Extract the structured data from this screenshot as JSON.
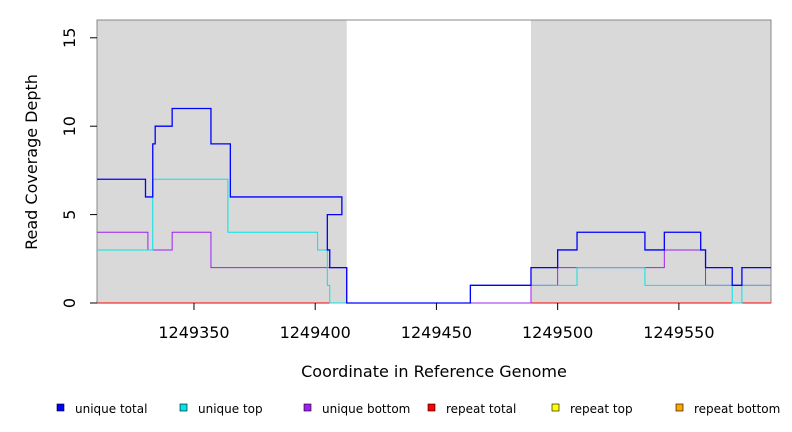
{
  "chart_data": {
    "type": "line",
    "title": "",
    "xlabel": "Coordinate in Reference Genome",
    "ylabel": "Read Coverage Depth",
    "xlim": [
      1249310,
      1249588
    ],
    "ylim": [
      0,
      16
    ],
    "x_ticks": [
      1249350,
      1249400,
      1249450,
      1249500,
      1249550
    ],
    "x_tick_labels": [
      "1249350",
      "1249400",
      "1249450",
      "1249500",
      "1249550"
    ],
    "y_ticks": [
      0,
      5,
      10,
      15
    ],
    "y_tick_labels": [
      "0",
      "5",
      "10",
      "15"
    ],
    "shaded_regions": [
      [
        1249310,
        1249413
      ],
      [
        1249489,
        1249588
      ]
    ],
    "shade_color": "#d9d9d9",
    "legend_position": "bottom",
    "series": [
      {
        "name": "unique total",
        "color": "#0000ff",
        "steps": [
          [
            1249310,
            7
          ],
          [
            1249330,
            6
          ],
          [
            1249333,
            9
          ],
          [
            1249334,
            10
          ],
          [
            1249341,
            11
          ],
          [
            1249357,
            9
          ],
          [
            1249365,
            6
          ],
          [
            1249411,
            5
          ],
          [
            1249405,
            3
          ],
          [
            1249406,
            2
          ],
          [
            1249413,
            0
          ],
          [
            1249464,
            1
          ],
          [
            1249489,
            2
          ],
          [
            1249500,
            3
          ],
          [
            1249508,
            4
          ],
          [
            1249536,
            3
          ],
          [
            1249544,
            4
          ],
          [
            1249559,
            3
          ],
          [
            1249561,
            2
          ],
          [
            1249572,
            1
          ],
          [
            1249576,
            2
          ],
          [
            1249588,
            2
          ]
        ]
      },
      {
        "name": "unique top",
        "color": "#00e5e5",
        "steps": [
          [
            1249310,
            3
          ],
          [
            1249333,
            7
          ],
          [
            1249364,
            4
          ],
          [
            1249401,
            3
          ],
          [
            1249405,
            1
          ],
          [
            1249406,
            0
          ],
          [
            1249464,
            1
          ],
          [
            1249489,
            1
          ],
          [
            1249508,
            2
          ],
          [
            1249536,
            1
          ],
          [
            1249572,
            0
          ],
          [
            1249576,
            1
          ],
          [
            1249588,
            1
          ]
        ]
      },
      {
        "name": "unique bottom",
        "color": "#a020f0",
        "steps": [
          [
            1249310,
            4
          ],
          [
            1249331,
            3
          ],
          [
            1249341,
            4
          ],
          [
            1249357,
            2
          ],
          [
            1249413,
            0
          ],
          [
            1249489,
            1
          ],
          [
            1249500,
            2
          ],
          [
            1249544,
            3
          ],
          [
            1249561,
            1
          ],
          [
            1249588,
            1
          ]
        ]
      },
      {
        "name": "repeat total",
        "color": "#ff0000",
        "steps": [
          [
            1249310,
            0
          ],
          [
            1249588,
            0
          ]
        ]
      },
      {
        "name": "repeat top",
        "color": "#ffff00",
        "steps": [
          [
            1249310,
            0
          ],
          [
            1249588,
            0
          ]
        ]
      },
      {
        "name": "repeat bottom",
        "color": "#ffa500",
        "steps": [
          [
            1249310,
            0
          ],
          [
            1249588,
            0
          ]
        ]
      }
    ]
  }
}
